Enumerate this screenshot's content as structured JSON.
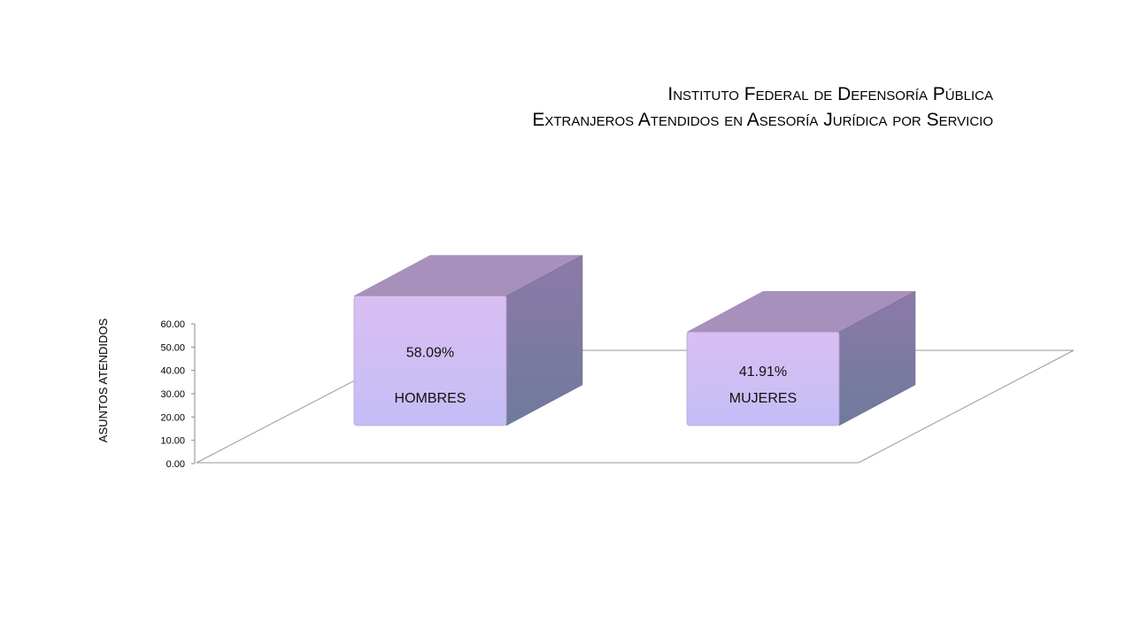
{
  "title": {
    "line1": "Instituto Federal de Defensoría Pública",
    "line2": "Extranjeros Atendidos en Asesoría Jurídica por Servicio"
  },
  "chart_data": {
    "type": "bar",
    "style": "3d-box",
    "title": "Instituto Federal de Defensoría Pública — Extranjeros Atendidos en Asesoría Jurídica por Servicio",
    "categories": [
      "HOMBRES",
      "MUJERES"
    ],
    "values": [
      58.09,
      41.91
    ],
    "data_labels": [
      "58.09%",
      "41.91%"
    ],
    "ylabel": "ASUNTOS ATENDIDOS",
    "xlabel": "",
    "ylim": [
      0,
      60
    ],
    "yticks": [
      "0.00",
      "10.00",
      "20.00",
      "30.00",
      "40.00",
      "50.00",
      "60.00"
    ],
    "grid": false,
    "legend": "none",
    "colors": {
      "front_top": "#d9bff2",
      "front_bottom": "#c4bdf6",
      "side_top": "#8c7aa8",
      "side_bottom": "#6f7a9c",
      "top_face": "#a890bc",
      "floor_line": "#9a9a9a"
    }
  }
}
